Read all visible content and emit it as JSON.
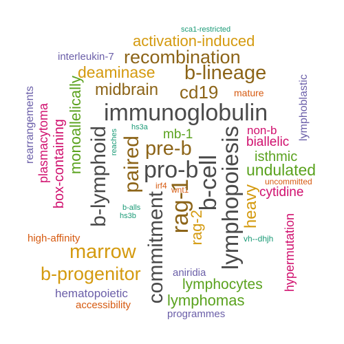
{
  "words": [
    {
      "text": "sca1-restricted"
    },
    {
      "text": "activation-induced"
    },
    {
      "text": "interleukin-7"
    },
    {
      "text": "recombination"
    },
    {
      "text": "deaminase"
    },
    {
      "text": "b-lineage"
    },
    {
      "text": "midbrain"
    },
    {
      "text": "cd19"
    },
    {
      "text": "mature"
    },
    {
      "text": "immunoglobulin"
    },
    {
      "text": "hs3a"
    },
    {
      "text": "reaches"
    },
    {
      "text": "mb-1"
    },
    {
      "text": "non-b"
    },
    {
      "text": "biallelic"
    },
    {
      "text": "pre-b"
    },
    {
      "text": "isthmic"
    },
    {
      "text": "pro-b"
    },
    {
      "text": "undulated"
    },
    {
      "text": "uncommitted"
    },
    {
      "text": "irf4"
    },
    {
      "text": "wnt1"
    },
    {
      "text": "cytidine"
    },
    {
      "text": "b-alls"
    },
    {
      "text": "hs3b"
    },
    {
      "text": "high-affinity"
    },
    {
      "text": "vh--dhjh"
    },
    {
      "text": "marrow"
    },
    {
      "text": "b-progenitor"
    },
    {
      "text": "aniridia"
    },
    {
      "text": "lymphocytes"
    },
    {
      "text": "hematopoietic"
    },
    {
      "text": "lymphomas"
    },
    {
      "text": "accessibility"
    },
    {
      "text": "programmes"
    },
    {
      "text": "rearrangements"
    },
    {
      "text": "plasmacytoma"
    },
    {
      "text": "box-containing"
    },
    {
      "text": "monoallelically"
    },
    {
      "text": "b-lymphoid"
    },
    {
      "text": "paired"
    },
    {
      "text": "commitment"
    },
    {
      "text": "rag-1"
    },
    {
      "text": "rag-2"
    },
    {
      "text": "b-cell"
    },
    {
      "text": "lymphopoiesis"
    },
    {
      "text": "heavy"
    },
    {
      "text": "lymphoblastic"
    },
    {
      "text": "hypermutation"
    }
  ]
}
